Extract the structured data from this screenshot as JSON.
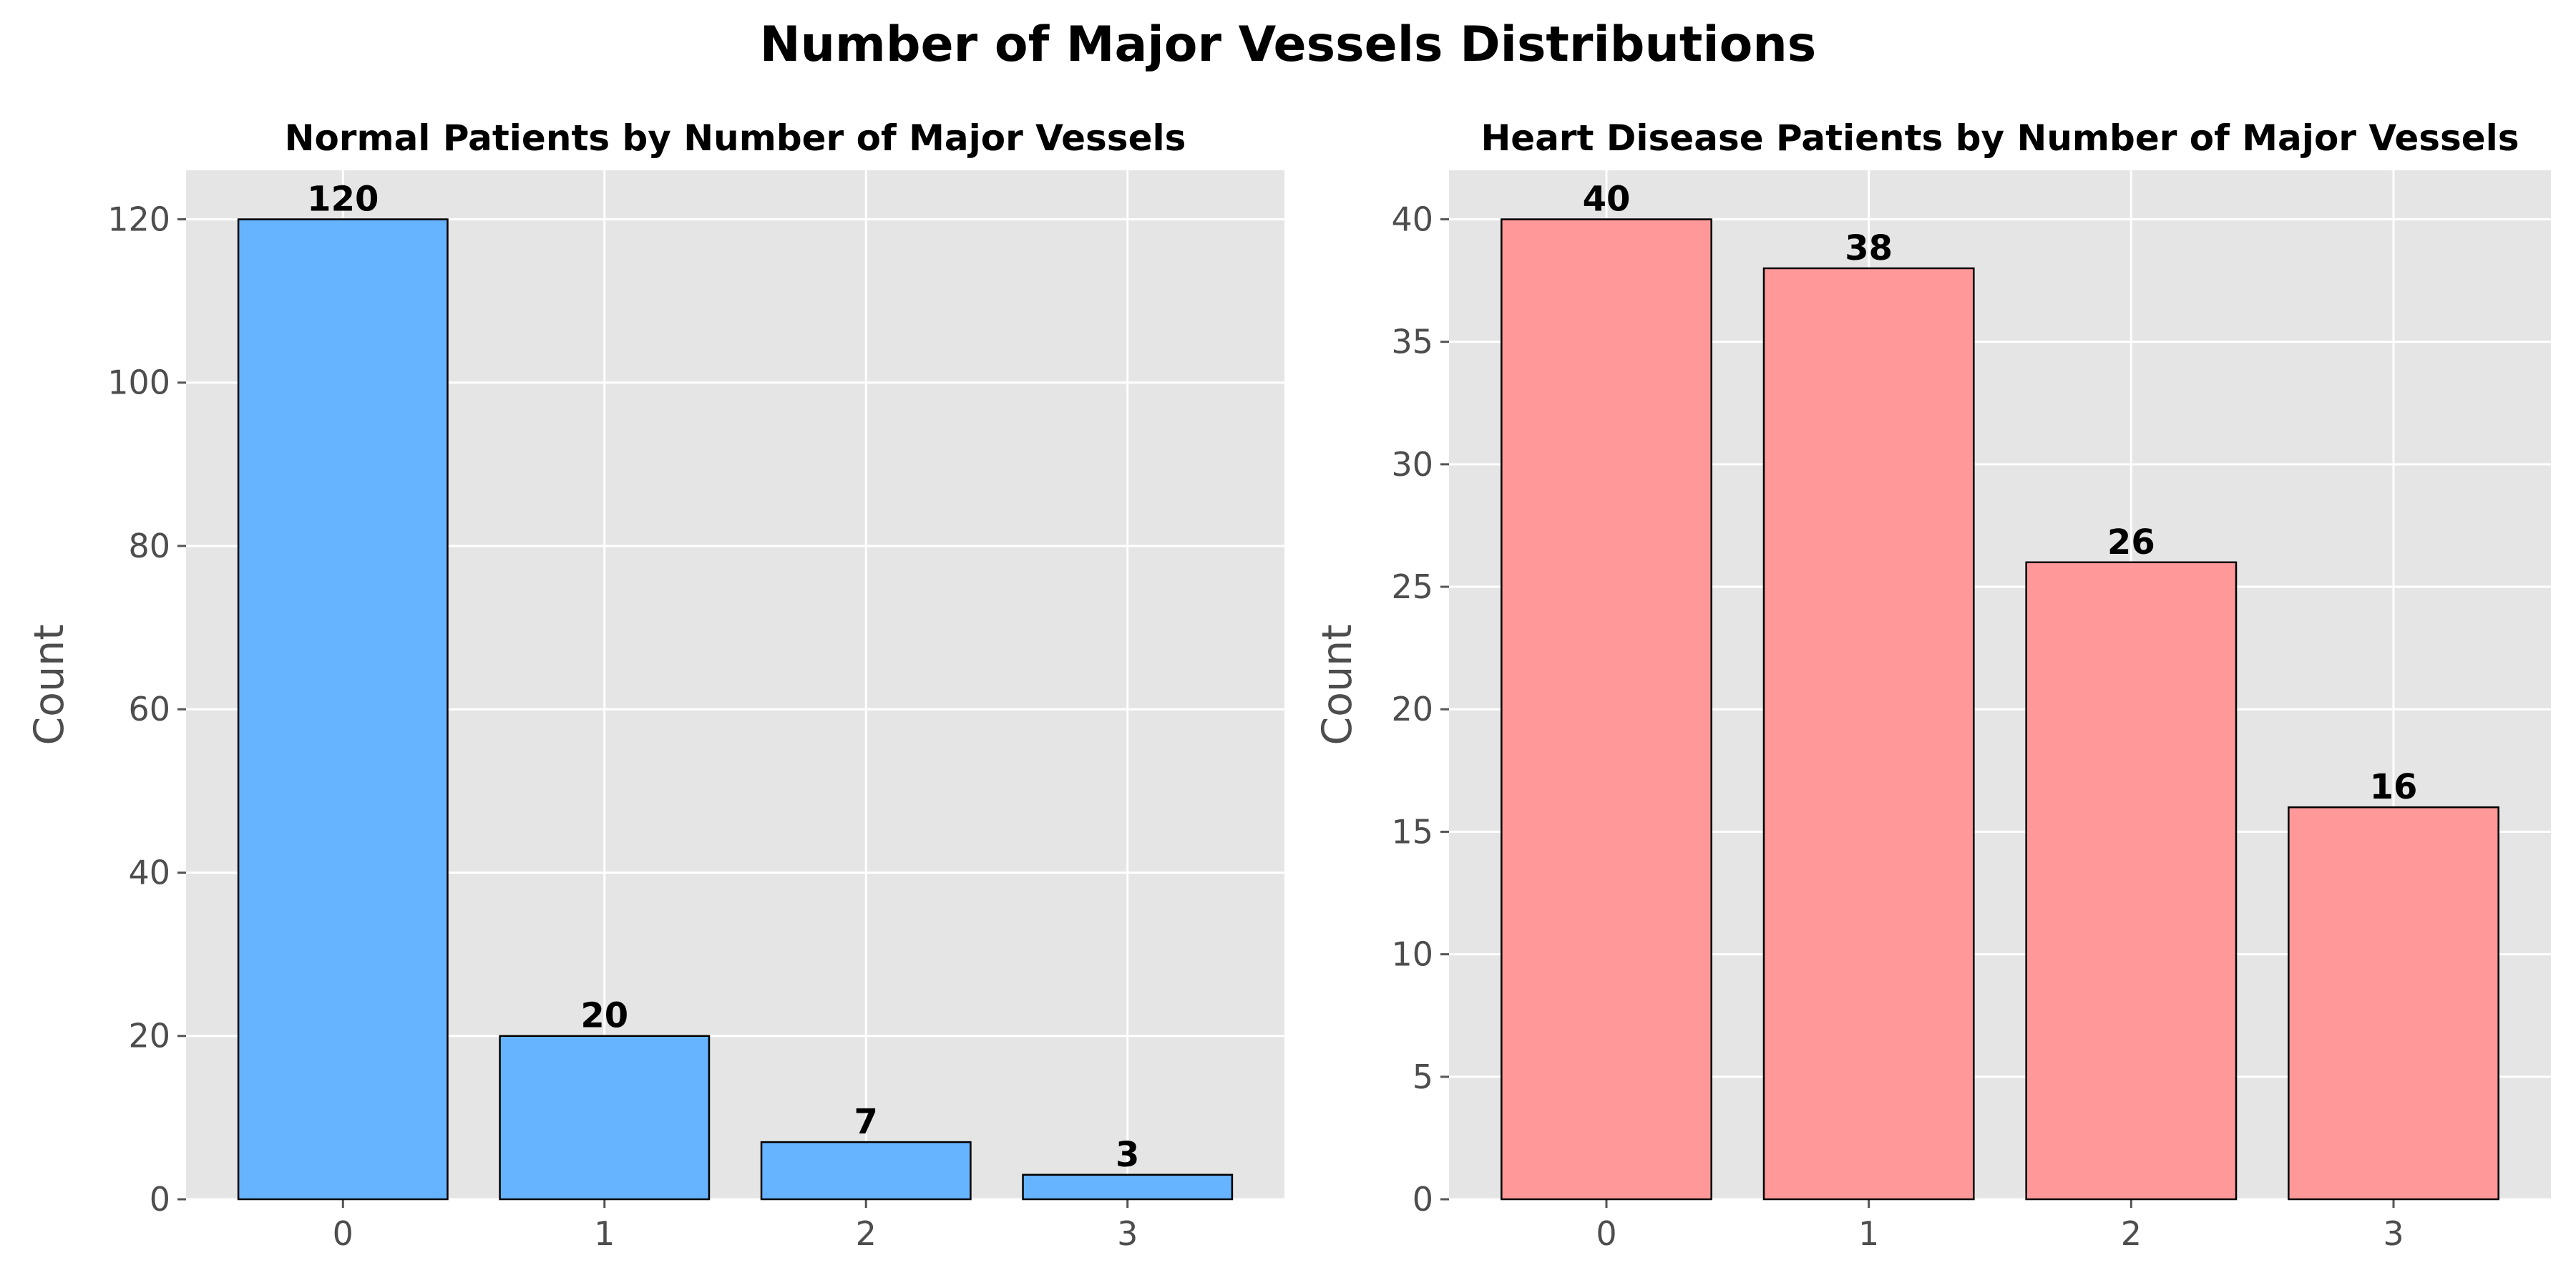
{
  "figure": {
    "title": "Number of Major Vessels Distributions"
  },
  "chart_data": [
    {
      "type": "bar",
      "title": "Normal Patients by Number of Major Vessels",
      "xlabel": "",
      "ylabel": "Count",
      "categories": [
        "0",
        "1",
        "2",
        "3"
      ],
      "values": [
        120,
        20,
        7,
        3
      ],
      "ylim": [
        0,
        126
      ],
      "yticks": [
        0,
        20,
        40,
        60,
        80,
        100,
        120
      ],
      "bar_color": "#66b3ff",
      "grid": true
    },
    {
      "type": "bar",
      "title": "Heart Disease Patients by Number of Major Vessels",
      "xlabel": "",
      "ylabel": "Count",
      "categories": [
        "0",
        "1",
        "2",
        "3"
      ],
      "values": [
        40,
        38,
        26,
        16
      ],
      "ylim": [
        0,
        42
      ],
      "yticks": [
        0,
        5,
        10,
        15,
        20,
        25,
        30,
        35,
        40
      ],
      "bar_color": "#ff9999",
      "grid": true
    }
  ]
}
